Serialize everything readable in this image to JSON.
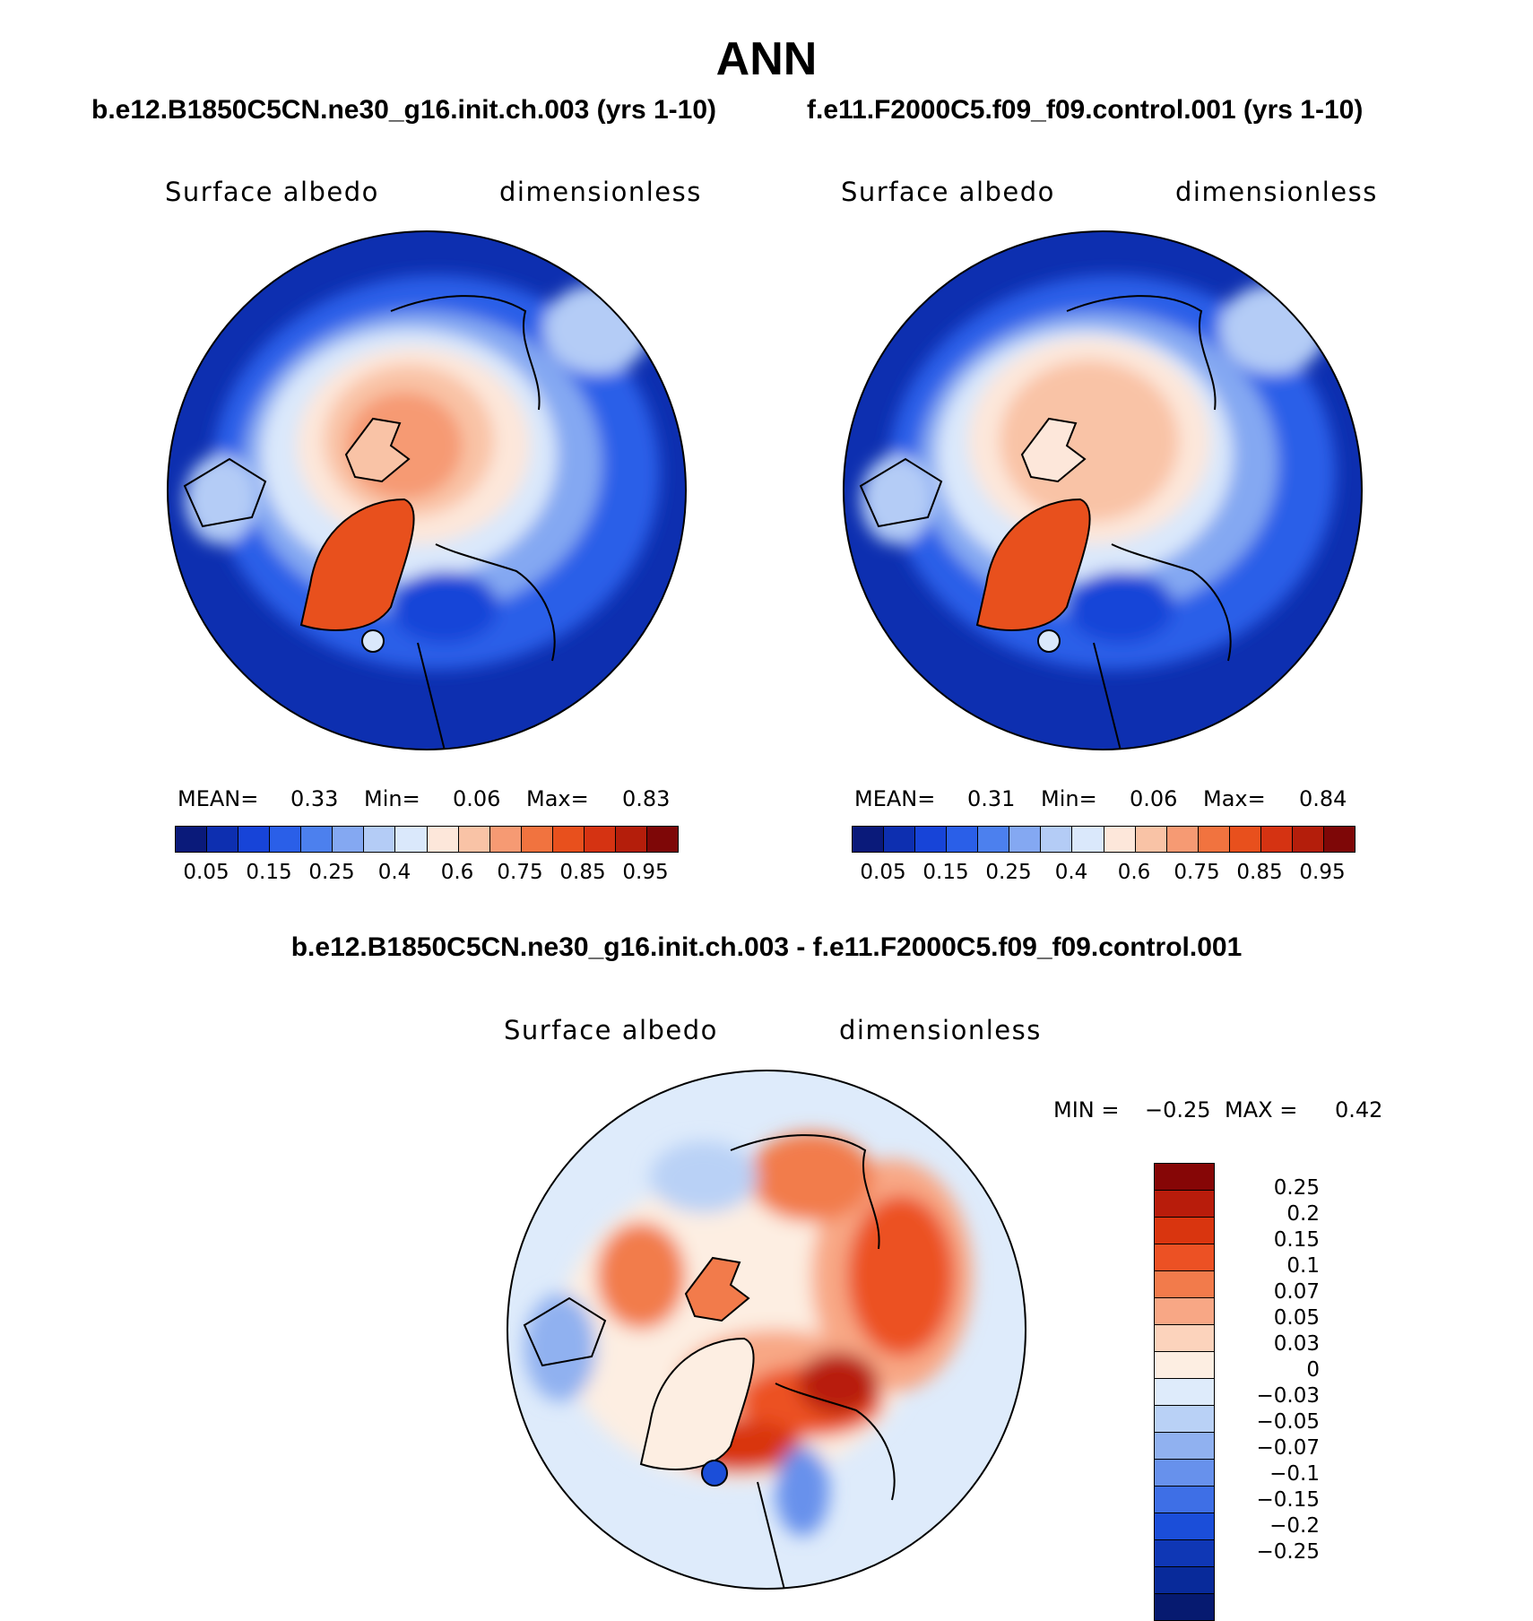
{
  "season": "ANN",
  "panels": [
    {
      "case_title": "b.e12.B1850C5CN.ne30_g16.init.ch.003 (yrs 1-10)",
      "variable": "Surface albedo",
      "units": "dimensionless",
      "mean_label": "MEAN=",
      "mean_value": "0.33",
      "min_label": "Min=",
      "min_value": "0.06",
      "max_label": "Max=",
      "max_value": "0.83"
    },
    {
      "case_title": "f.e11.F2000C5.f09_f09.control.001 (yrs 1-10)",
      "variable": "Surface albedo",
      "units": "dimensionless",
      "mean_label": "MEAN=",
      "mean_value": "0.31",
      "min_label": "Min=",
      "min_value": "0.06",
      "max_label": "Max=",
      "max_value": "0.84"
    }
  ],
  "abs_colorbar": {
    "colors": [
      "#0a1a7a",
      "#0d2fb0",
      "#1744d8",
      "#2a5fe8",
      "#4c80ee",
      "#84a8f2",
      "#b4ccf6",
      "#dae8fb",
      "#fde7da",
      "#f9c3a6",
      "#f69a73",
      "#f1733f",
      "#e8501d",
      "#d53312",
      "#b41e0b",
      "#7e0707"
    ],
    "tick_labels": [
      "0.05",
      "0.15",
      "0.25",
      "0.4",
      "0.6",
      "0.75",
      "0.85",
      "0.95"
    ]
  },
  "diff": {
    "title": "b.e12.B1850C5CN.ne30_g16.init.ch.003 - f.e11.F2000C5.f09_f09.control.001",
    "variable": "Surface albedo",
    "units": "dimensionless",
    "min_label": "MIN =",
    "min_value": "−0.25",
    "max_label": "MAX =",
    "max_value": "0.42",
    "colors": [
      "#860606",
      "#b81c0b",
      "#d9350f",
      "#ec5124",
      "#f27b4b",
      "#f8a785",
      "#fcd3bc",
      "#fdeee2",
      "#deebfb",
      "#b9d1f6",
      "#90b1f0",
      "#6791ec",
      "#3e6fe6",
      "#1b4ed9",
      "#0f37b5",
      "#082a9a",
      "#061a70"
    ],
    "tick_labels": [
      "0.25",
      "0.2",
      "0.15",
      "0.1",
      "0.07",
      "0.05",
      "0.03",
      "0",
      "−0.03",
      "−0.05",
      "−0.07",
      "−0.1",
      "−0.15",
      "−0.2",
      "−0.25"
    ]
  }
}
